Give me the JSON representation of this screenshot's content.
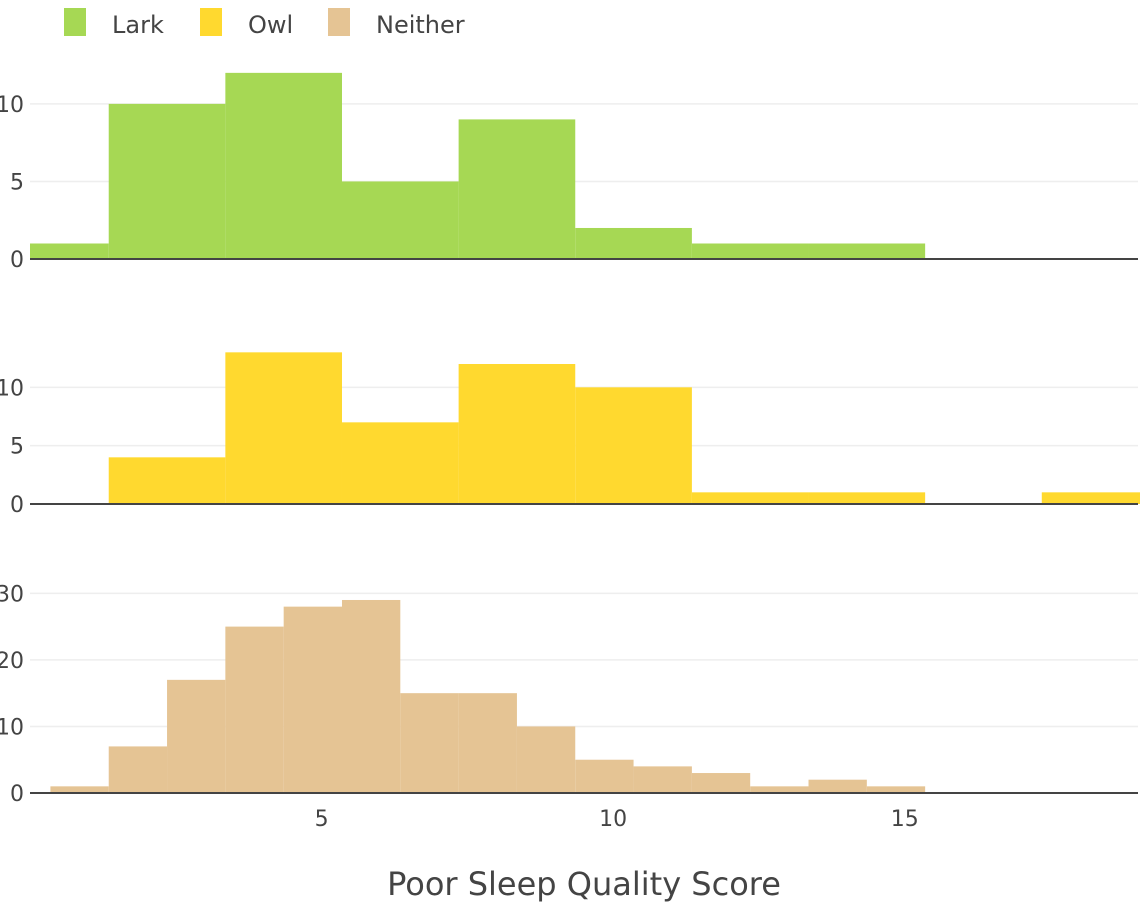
{
  "chart_data": {
    "type": "bar",
    "xlabel": "Poor Sleep Quality Score",
    "legend_placement": "top-left",
    "x_ticks": [
      5,
      10,
      15
    ],
    "xlim": [
      0,
      19
    ],
    "grid": true,
    "series": [
      {
        "name": "Lark",
        "color": "#a6d854",
        "y_ticks": [
          0,
          5,
          10
        ],
        "ylim": [
          0,
          12.7
        ],
        "bins": [
          {
            "start": 0,
            "end": 1.35,
            "count": 1
          },
          {
            "start": 1.35,
            "end": 3.35,
            "count": 10
          },
          {
            "start": 3.35,
            "end": 5.35,
            "count": 12
          },
          {
            "start": 5.35,
            "end": 7.35,
            "count": 5
          },
          {
            "start": 7.35,
            "end": 9.35,
            "count": 9
          },
          {
            "start": 9.35,
            "end": 11.35,
            "count": 2
          },
          {
            "start": 11.35,
            "end": 13.35,
            "count": 1
          },
          {
            "start": 13.35,
            "end": 15.35,
            "count": 1
          }
        ]
      },
      {
        "name": "Owl",
        "color": "#ffd92f",
        "y_ticks": [
          0,
          5,
          10
        ],
        "ylim": [
          0,
          13.2
        ],
        "bins": [
          {
            "start": 1.35,
            "end": 3.35,
            "count": 4
          },
          {
            "start": 3.35,
            "end": 5.35,
            "count": 13
          },
          {
            "start": 5.35,
            "end": 7.35,
            "count": 7
          },
          {
            "start": 7.35,
            "end": 9.35,
            "count": 12
          },
          {
            "start": 9.35,
            "end": 11.35,
            "count": 10
          },
          {
            "start": 11.35,
            "end": 13.35,
            "count": 1
          },
          {
            "start": 13.35,
            "end": 15.35,
            "count": 1
          },
          {
            "start": 17.35,
            "end": 19.35,
            "count": 1
          }
        ]
      },
      {
        "name": "Neither",
        "color": "#e5c494",
        "y_ticks": [
          0,
          10,
          20,
          30
        ],
        "ylim": [
          0,
          30.5
        ],
        "bins": [
          {
            "start": 0.35,
            "end": 1.35,
            "count": 1
          },
          {
            "start": 1.35,
            "end": 2.35,
            "count": 7
          },
          {
            "start": 2.35,
            "end": 3.35,
            "count": 17
          },
          {
            "start": 3.35,
            "end": 4.35,
            "count": 25
          },
          {
            "start": 4.35,
            "end": 5.35,
            "count": 28
          },
          {
            "start": 5.35,
            "end": 6.35,
            "count": 29
          },
          {
            "start": 6.35,
            "end": 7.35,
            "count": 15
          },
          {
            "start": 7.35,
            "end": 8.35,
            "count": 15
          },
          {
            "start": 8.35,
            "end": 9.35,
            "count": 10
          },
          {
            "start": 9.35,
            "end": 10.35,
            "count": 5
          },
          {
            "start": 10.35,
            "end": 11.35,
            "count": 4
          },
          {
            "start": 11.35,
            "end": 12.35,
            "count": 3
          },
          {
            "start": 12.35,
            "end": 13.35,
            "count": 1
          },
          {
            "start": 13.35,
            "end": 14.35,
            "count": 2
          },
          {
            "start": 14.35,
            "end": 15.35,
            "count": 1
          }
        ]
      }
    ]
  }
}
